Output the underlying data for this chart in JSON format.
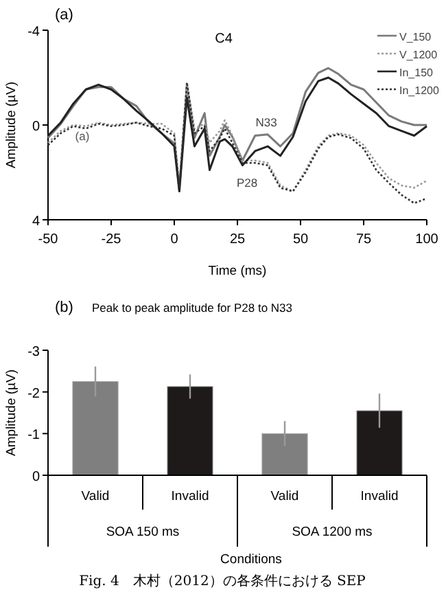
{
  "chart_data": [
    {
      "type": "line",
      "title": "(a)",
      "xlabel": "Time (ms)",
      "ylabel": "Amplitude (µV)",
      "xlim": [
        -50,
        100
      ],
      "ylim": [
        4,
        -4
      ],
      "xticks": [
        -50,
        -25,
        0,
        25,
        50,
        75,
        100
      ],
      "yticks": [
        -4,
        0,
        4
      ],
      "legend": "top right",
      "grid": false,
      "x": [
        -50,
        -45,
        -40,
        -35,
        -30,
        -25,
        -20,
        -15,
        -10,
        -5,
        0,
        2,
        5,
        8,
        12,
        14,
        18,
        20,
        23,
        27,
        32,
        37,
        42,
        47,
        52,
        57,
        61,
        65,
        70,
        75,
        80,
        85,
        90,
        95,
        100
      ],
      "series": [
        {
          "name": "V_150",
          "color": "#7a7a7a",
          "line_style": "solid",
          "values": [
            0.54,
            -0.04,
            -0.8,
            -1.5,
            -1.6,
            -1.6,
            -1.1,
            -0.8,
            -0.1,
            0.35,
            0.77,
            2.75,
            -1.7,
            0.54,
            -0.5,
            1.3,
            0.5,
            0,
            0.5,
            1.5,
            0.45,
            0.4,
            0.9,
            0.35,
            -1.4,
            -2.2,
            -2.4,
            -2.15,
            -1.7,
            -1.5,
            -0.95,
            -0.4,
            -0.15,
            0,
            0
          ]
        },
        {
          "name": "V_1200",
          "color": "#9a9a9a",
          "line_style": "dotted",
          "values": [
            0.75,
            0.25,
            0,
            0.05,
            -0.1,
            0,
            -0.05,
            -0.1,
            -0.05,
            -0.05,
            0.35,
            2.65,
            -1.7,
            0.15,
            -0.05,
            0.75,
            0.25,
            -0.2,
            0.45,
            1.5,
            1.5,
            1.6,
            2.55,
            2.8,
            1.9,
            0.9,
            0.45,
            0.35,
            0.45,
            0.85,
            1.6,
            2.25,
            2.55,
            2.65,
            2.35
          ]
        },
        {
          "name": "In_150",
          "color": "#222222",
          "line_style": "solid",
          "values": [
            0.45,
            -0.1,
            -0.9,
            -1.5,
            -1.7,
            -1.5,
            -1.1,
            -0.6,
            -0.15,
            0.35,
            0.9,
            2.8,
            -1.15,
            0.9,
            0.15,
            1.9,
            0.7,
            0.6,
            0.9,
            1.7,
            1.1,
            0.9,
            1.3,
            0.5,
            -1.0,
            -1.85,
            -2.0,
            -1.75,
            -1.3,
            -0.9,
            -0.5,
            0.05,
            0.25,
            0.45,
            0.05
          ]
        },
        {
          "name": "In_1200",
          "color": "#333333",
          "line_style": "dotted",
          "values": [
            0.85,
            0.35,
            0.05,
            0.15,
            -0.05,
            0.05,
            0,
            -0.1,
            0.05,
            0.15,
            0.45,
            2.65,
            -1.8,
            0.35,
            0.05,
            1.1,
            0.55,
            0.15,
            0.75,
            1.6,
            1.6,
            1.7,
            2.65,
            2.8,
            2.0,
            1.0,
            0.5,
            0.4,
            0.55,
            1.0,
            1.9,
            2.45,
            2.95,
            3.3,
            3.1
          ]
        }
      ],
      "annotations": [
        "C4",
        "N33",
        "P28",
        "(a)"
      ]
    },
    {
      "type": "bar",
      "title": "(b)",
      "subtitle": "Peak to peak amplitude for P28 to N33",
      "xlabel": "Conditions",
      "ylabel": "Amplitude (µV)",
      "ylim": [
        0,
        -3
      ],
      "yticks": [
        -3,
        -2,
        -1,
        0
      ],
      "categories": [
        "Valid",
        "Invalid",
        "Valid",
        "Invalid"
      ],
      "values": [
        -2.25,
        -2.13,
        -1.0,
        -1.55
      ],
      "errors": [
        0.36,
        0.29,
        0.3,
        0.41
      ],
      "colors": [
        "#7f7f7f",
        "#1e1a1a",
        "#7f7f7f",
        "#1e1a1a"
      ],
      "annotations": [
        "SOA 150 ms",
        "SOA 1200 ms",
        "Fig. 4　木村（2012）の各条件における SEP"
      ]
    }
  ]
}
